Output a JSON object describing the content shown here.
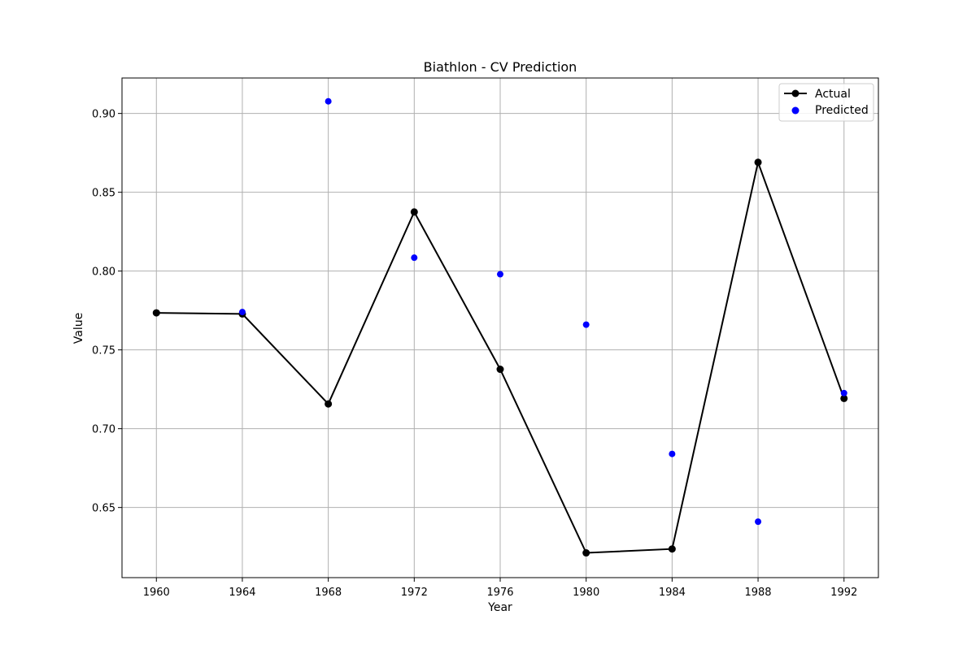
{
  "chart_data": {
    "type": "line",
    "title": "Biathlon - CV Prediction",
    "xlabel": "Year",
    "ylabel": "Value",
    "x": [
      1960,
      1964,
      1968,
      1972,
      1976,
      1980,
      1984,
      1988,
      1992
    ],
    "xlim": [
      1958.4,
      1993.6
    ],
    "ylim": [
      0.6055,
      0.9225
    ],
    "xticks": [
      1960,
      1964,
      1968,
      1972,
      1976,
      1980,
      1984,
      1988,
      1992
    ],
    "yticks": [
      0.65,
      0.7,
      0.75,
      0.8,
      0.85,
      0.9
    ],
    "ytick_labels": [
      "0.65",
      "0.70",
      "0.75",
      "0.80",
      "0.85",
      "0.90"
    ],
    "grid": true,
    "legend_position": "top-right",
    "series": [
      {
        "name": "Actual",
        "kind": "line-with-markers",
        "color": "#000000",
        "values": [
          0.7735,
          0.7728,
          0.7157,
          0.8375,
          0.7377,
          0.6212,
          0.6237,
          0.869,
          0.7192
        ]
      },
      {
        "name": "Predicted",
        "kind": "scatter",
        "color": "#0000ff",
        "values": [
          null,
          0.774,
          0.9077,
          0.8085,
          0.798,
          0.766,
          0.684,
          0.641,
          0.7226
        ]
      }
    ]
  }
}
